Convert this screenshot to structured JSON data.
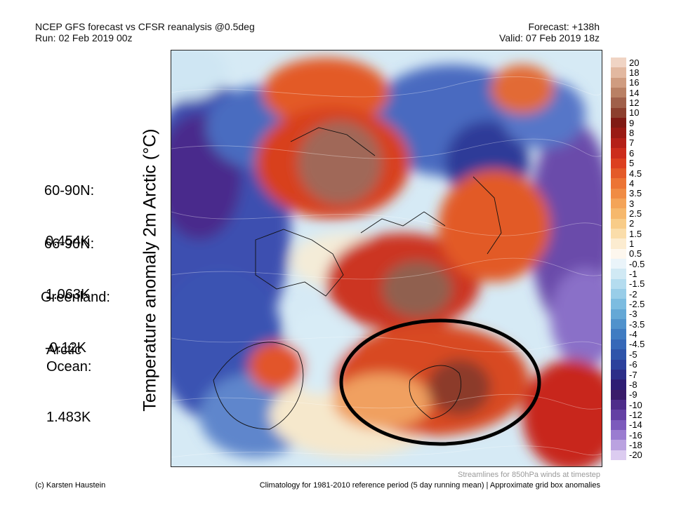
{
  "header": {
    "title": "NCEP GFS forecast vs CFSR reanalysis @0.5deg",
    "run": "Run: 02 Feb 2019 00z",
    "forecast": "Forecast: +138h",
    "valid": "Valid: 07 Feb 2019 18z"
  },
  "side_stats": [
    {
      "label": "60-90N:",
      "value": "0.454K"
    },
    {
      "label": "66-90N:",
      "value": "1.063K"
    },
    {
      "label": "Greenland:",
      "value": "-0.12K"
    },
    {
      "label": "Arctic\nOcean:",
      "value": "1.483K"
    }
  ],
  "map": {
    "axis_label": "Temperature anomaly 2m Arctic (°C)",
    "highlight": "black ellipse around Scandinavia / Barents region",
    "streamline_note": "Streamlines for 850hPa winds at timestep"
  },
  "colorbar": {
    "labels": [
      "20",
      "18",
      "16",
      "14",
      "12",
      "10",
      "9",
      "8",
      "7",
      "6",
      "5",
      "4.5",
      "4",
      "3.5",
      "3",
      "2.5",
      "2",
      "1.5",
      "1",
      "0.5",
      "-0.5",
      "-1",
      "-1.5",
      "-2",
      "-2.5",
      "-3",
      "-3.5",
      "-4",
      "-4.5",
      "-5",
      "-6",
      "-7",
      "-8",
      "-9",
      "-10",
      "-12",
      "-14",
      "-16",
      "-18",
      "-20"
    ],
    "colors": [
      "#f0d4c4",
      "#e2b8a0",
      "#cf9c80",
      "#b98064",
      "#a0604a",
      "#8c3f2e",
      "#801a14",
      "#9a1a14",
      "#b42018",
      "#cc2c1c",
      "#dc4020",
      "#e45a28",
      "#ec7434",
      "#f08c44",
      "#f4a458",
      "#f6b86c",
      "#f8cc88",
      "#faddaa",
      "#fcecd0",
      "#fdf7ee",
      "#eaf4fa",
      "#d0e9f4",
      "#b4dcef",
      "#98cde8",
      "#7cbce0",
      "#64a8d6",
      "#5092cc",
      "#407cc2",
      "#3668b8",
      "#2e54aa",
      "#2c409c",
      "#2c2e88",
      "#2e1e74",
      "#3a1c6a",
      "#4e2c8a",
      "#6440a4",
      "#7c5abc",
      "#9a7cd0",
      "#baa2e0",
      "#dcccf0"
    ]
  },
  "footer": {
    "credit": "(c) Karsten Haustein",
    "climatology": "Climatology for 1981-2010 reference period (5 day running mean) | Approximate grid box anomalies"
  }
}
